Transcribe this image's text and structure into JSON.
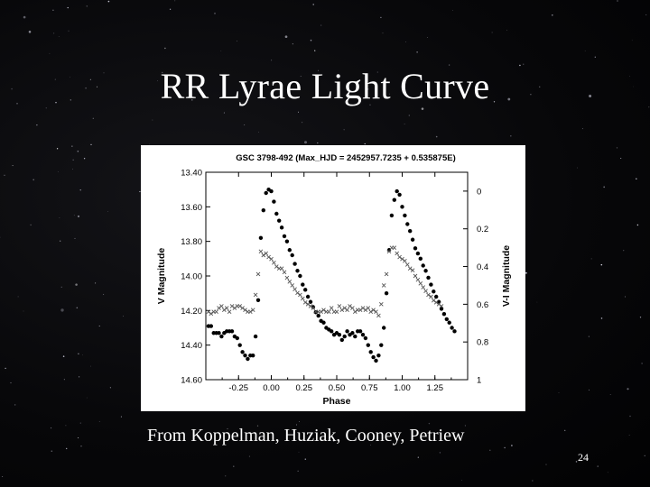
{
  "slide": {
    "title": "RR Lyrae Light Curve",
    "caption": "From Koppelman, Huziak, Cooney, Petriew",
    "page_number": "24",
    "background_color": "#050507",
    "text_color": "#ffffff"
  },
  "chart_data": {
    "type": "scatter",
    "title": "GSC 3798-492 (Max_HJD = 2452957.7235 + 0.535875E)",
    "xlabel": "Phase",
    "ylabel": "V Magnitude",
    "y2label": "V-I Magnitude",
    "xlim": [
      -0.5,
      1.5
    ],
    "ylim": [
      14.6,
      13.4
    ],
    "y2lim": [
      1.0,
      -0.1
    ],
    "x_ticks": [
      "-0.25",
      "0.00",
      "0.25",
      "0.50",
      "0.75",
      "1.00",
      "1.25"
    ],
    "x_tick_values": [
      -0.25,
      0,
      0.25,
      0.5,
      0.75,
      1.0,
      1.25
    ],
    "y_ticks": [
      "13.40",
      "13.60",
      "13.80",
      "14.00",
      "14.20",
      "14.40",
      "14.60"
    ],
    "y_tick_values": [
      13.4,
      13.6,
      13.8,
      14.0,
      14.2,
      14.4,
      14.6
    ],
    "y2_ticks": [
      "0",
      "0.2",
      "0.4",
      "0.6",
      "0.8",
      "1"
    ],
    "y2_tick_values": [
      0,
      0.2,
      0.4,
      0.6,
      0.8,
      1.0
    ],
    "grid": false,
    "series": [
      {
        "axis": "left",
        "marker": "dot",
        "points": [
          [
            -0.48,
            14.29
          ],
          [
            -0.46,
            14.29
          ],
          [
            -0.44,
            14.33
          ],
          [
            -0.42,
            14.33
          ],
          [
            -0.4,
            14.33
          ],
          [
            -0.38,
            14.35
          ],
          [
            -0.36,
            14.33
          ],
          [
            -0.34,
            14.32
          ],
          [
            -0.32,
            14.32
          ],
          [
            -0.3,
            14.32
          ],
          [
            -0.28,
            14.35
          ],
          [
            -0.26,
            14.36
          ],
          [
            -0.24,
            14.4
          ],
          [
            -0.22,
            14.44
          ],
          [
            -0.2,
            14.46
          ],
          [
            -0.18,
            14.48
          ],
          [
            -0.16,
            14.46
          ],
          [
            -0.14,
            14.46
          ],
          [
            -0.12,
            14.35
          ],
          [
            -0.1,
            14.14
          ],
          [
            -0.08,
            13.78
          ],
          [
            -0.06,
            13.62
          ],
          [
            -0.04,
            13.52
          ],
          [
            -0.02,
            13.5
          ],
          [
            0.0,
            13.51
          ],
          [
            0.02,
            13.57
          ],
          [
            0.04,
            13.64
          ],
          [
            0.06,
            13.68
          ],
          [
            0.08,
            13.72
          ],
          [
            0.1,
            13.77
          ],
          [
            0.12,
            13.8
          ],
          [
            0.14,
            13.85
          ],
          [
            0.16,
            13.88
          ],
          [
            0.18,
            13.93
          ],
          [
            0.2,
            13.97
          ],
          [
            0.22,
            14.0
          ],
          [
            0.24,
            14.05
          ],
          [
            0.26,
            14.08
          ],
          [
            0.28,
            14.12
          ],
          [
            0.3,
            14.15
          ],
          [
            0.32,
            14.18
          ],
          [
            0.34,
            14.21
          ],
          [
            0.36,
            14.23
          ],
          [
            0.38,
            14.26
          ],
          [
            0.4,
            14.27
          ],
          [
            0.42,
            14.3
          ],
          [
            0.44,
            14.31
          ],
          [
            0.46,
            14.32
          ],
          [
            0.48,
            14.34
          ],
          [
            0.5,
            14.33
          ],
          [
            0.52,
            14.34
          ],
          [
            0.54,
            14.37
          ],
          [
            0.56,
            14.35
          ],
          [
            0.58,
            14.32
          ],
          [
            0.6,
            14.34
          ],
          [
            0.62,
            14.33
          ],
          [
            0.64,
            14.35
          ],
          [
            0.66,
            14.32
          ],
          [
            0.68,
            14.32
          ],
          [
            0.7,
            14.34
          ],
          [
            0.72,
            14.36
          ],
          [
            0.74,
            14.4
          ],
          [
            0.76,
            14.44
          ],
          [
            0.78,
            14.47
          ],
          [
            0.8,
            14.49
          ],
          [
            0.82,
            14.46
          ],
          [
            0.84,
            14.4
          ],
          [
            0.86,
            14.3
          ],
          [
            0.88,
            14.1
          ],
          [
            0.9,
            13.85
          ],
          [
            0.92,
            13.65
          ],
          [
            0.94,
            13.56
          ],
          [
            0.96,
            13.51
          ],
          [
            0.98,
            13.53
          ],
          [
            1.0,
            13.6
          ],
          [
            1.02,
            13.65
          ],
          [
            1.04,
            13.7
          ],
          [
            1.06,
            13.74
          ],
          [
            1.08,
            13.79
          ],
          [
            1.1,
            13.84
          ],
          [
            1.12,
            13.87
          ],
          [
            1.14,
            13.9
          ],
          [
            1.16,
            13.94
          ],
          [
            1.18,
            13.97
          ],
          [
            1.2,
            14.01
          ],
          [
            1.22,
            14.05
          ],
          [
            1.24,
            14.09
          ],
          [
            1.26,
            14.12
          ],
          [
            1.28,
            14.15
          ],
          [
            1.3,
            14.19
          ],
          [
            1.32,
            14.22
          ],
          [
            1.34,
            14.25
          ],
          [
            1.36,
            14.27
          ],
          [
            1.38,
            14.3
          ],
          [
            1.4,
            14.32
          ]
        ]
      },
      {
        "axis": "right",
        "marker": "x",
        "points": [
          [
            -0.48,
            0.64
          ],
          [
            -0.46,
            0.65
          ],
          [
            -0.44,
            0.64
          ],
          [
            -0.42,
            0.64
          ],
          [
            -0.4,
            0.62
          ],
          [
            -0.38,
            0.61
          ],
          [
            -0.36,
            0.63
          ],
          [
            -0.34,
            0.62
          ],
          [
            -0.32,
            0.64
          ],
          [
            -0.3,
            0.61
          ],
          [
            -0.28,
            0.62
          ],
          [
            -0.26,
            0.61
          ],
          [
            -0.24,
            0.61
          ],
          [
            -0.22,
            0.62
          ],
          [
            -0.2,
            0.63
          ],
          [
            -0.18,
            0.64
          ],
          [
            -0.16,
            0.64
          ],
          [
            -0.14,
            0.63
          ],
          [
            -0.12,
            0.55
          ],
          [
            -0.1,
            0.44
          ],
          [
            -0.08,
            0.32
          ],
          [
            -0.06,
            0.34
          ],
          [
            -0.04,
            0.33
          ],
          [
            -0.02,
            0.35
          ],
          [
            0.0,
            0.36
          ],
          [
            0.02,
            0.38
          ],
          [
            0.04,
            0.4
          ],
          [
            0.06,
            0.41
          ],
          [
            0.08,
            0.41
          ],
          [
            0.1,
            0.43
          ],
          [
            0.12,
            0.46
          ],
          [
            0.14,
            0.48
          ],
          [
            0.16,
            0.5
          ],
          [
            0.18,
            0.52
          ],
          [
            0.2,
            0.54
          ],
          [
            0.22,
            0.55
          ],
          [
            0.24,
            0.57
          ],
          [
            0.26,
            0.59
          ],
          [
            0.28,
            0.6
          ],
          [
            0.3,
            0.61
          ],
          [
            0.32,
            0.62
          ],
          [
            0.34,
            0.64
          ],
          [
            0.36,
            0.64
          ],
          [
            0.38,
            0.64
          ],
          [
            0.4,
            0.63
          ],
          [
            0.42,
            0.64
          ],
          [
            0.44,
            0.64
          ],
          [
            0.46,
            0.62
          ],
          [
            0.48,
            0.64
          ],
          [
            0.5,
            0.64
          ],
          [
            0.52,
            0.61
          ],
          [
            0.54,
            0.63
          ],
          [
            0.56,
            0.62
          ],
          [
            0.58,
            0.63
          ],
          [
            0.6,
            0.61
          ],
          [
            0.62,
            0.62
          ],
          [
            0.64,
            0.64
          ],
          [
            0.66,
            0.63
          ],
          [
            0.68,
            0.63
          ],
          [
            0.7,
            0.62
          ],
          [
            0.72,
            0.63
          ],
          [
            0.74,
            0.62
          ],
          [
            0.76,
            0.64
          ],
          [
            0.78,
            0.63
          ],
          [
            0.8,
            0.64
          ],
          [
            0.82,
            0.66
          ],
          [
            0.84,
            0.6
          ],
          [
            0.86,
            0.5
          ],
          [
            0.88,
            0.44
          ],
          [
            0.9,
            0.32
          ],
          [
            0.92,
            0.3
          ],
          [
            0.94,
            0.3
          ],
          [
            0.96,
            0.33
          ],
          [
            0.98,
            0.35
          ],
          [
            1.0,
            0.36
          ],
          [
            1.02,
            0.37
          ],
          [
            1.04,
            0.39
          ],
          [
            1.06,
            0.41
          ],
          [
            1.08,
            0.42
          ],
          [
            1.1,
            0.45
          ],
          [
            1.12,
            0.47
          ],
          [
            1.14,
            0.49
          ],
          [
            1.16,
            0.51
          ],
          [
            1.18,
            0.53
          ],
          [
            1.2,
            0.55
          ],
          [
            1.22,
            0.56
          ],
          [
            1.24,
            0.58
          ],
          [
            1.26,
            0.59
          ],
          [
            1.28,
            0.6
          ],
          [
            1.3,
            0.61
          ]
        ]
      }
    ]
  }
}
